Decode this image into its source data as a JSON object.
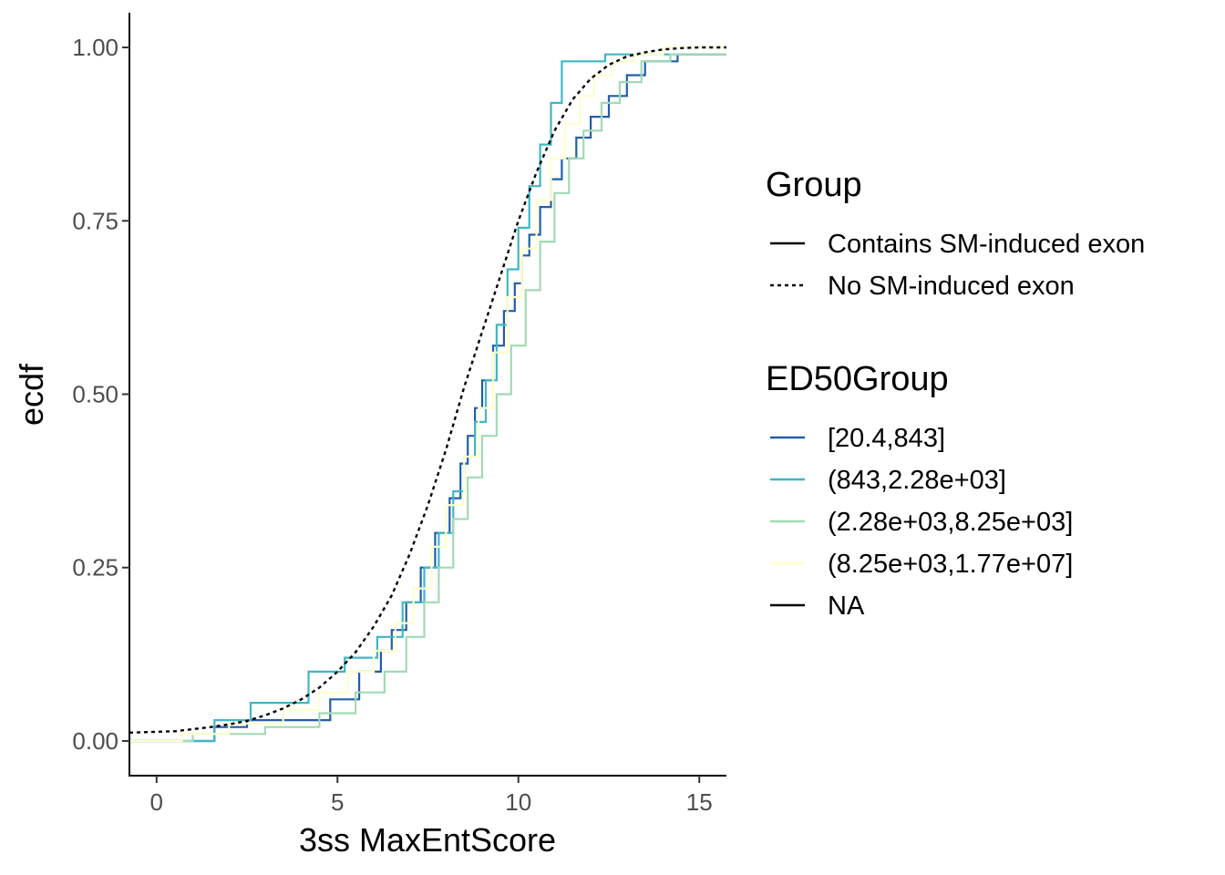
{
  "chart_data": {
    "type": "line",
    "xlabel": "3ss MaxEntScore",
    "ylabel": "ecdf",
    "xlim": [
      -0.75,
      15.75
    ],
    "ylim": [
      -0.05,
      1.05
    ],
    "x_ticks": [
      0,
      5,
      10,
      15
    ],
    "x_tick_labels": [
      "0",
      "5",
      "10",
      "15"
    ],
    "y_ticks": [
      0,
      0.25,
      0.5,
      0.75,
      1
    ],
    "y_tick_labels": [
      "0.00",
      "0.25",
      "0.50",
      "0.75",
      "1.00"
    ],
    "grid": false,
    "legend_position": "right",
    "legends": [
      {
        "title": "Group",
        "entries": [
          {
            "label": "Contains SM-induced exon",
            "color": "#000000",
            "dash": "solid"
          },
          {
            "label": "No SM-induced exon",
            "color": "#000000",
            "dash": "dotted"
          }
        ]
      },
      {
        "title": "ED50Group",
        "entries": [
          {
            "label": "[20.4,843]",
            "color": "#225ea8",
            "dash": "solid"
          },
          {
            "label": "(843,2.28e+03]",
            "color": "#41b6c4",
            "dash": "solid"
          },
          {
            "label": "(2.28e+03,8.25e+03]",
            "color": "#a1dab4",
            "dash": "solid"
          },
          {
            "label": "(8.25e+03,1.77e+07]",
            "color": "#ffffcc",
            "dash": "solid"
          },
          {
            "label": "NA",
            "color": "#000000",
            "dash": "solid"
          }
        ]
      }
    ],
    "series": [
      {
        "name": "No SM-induced exon",
        "group": "No SM-induced exon",
        "color": "#000000",
        "dash": "dotted",
        "step": false,
        "x": [
          -0.75,
          0.5,
          1,
          1.5,
          2,
          2.5,
          3,
          3.5,
          4,
          4.5,
          5,
          5.5,
          6,
          6.5,
          7,
          7.5,
          8,
          8.5,
          9,
          9.5,
          10,
          10.5,
          11,
          11.5,
          12,
          12.5,
          13,
          13.5,
          14,
          14.5,
          15,
          15.75
        ],
        "y": [
          0.012,
          0.014,
          0.017,
          0.02,
          0.024,
          0.029,
          0.037,
          0.047,
          0.06,
          0.077,
          0.1,
          0.128,
          0.165,
          0.21,
          0.27,
          0.34,
          0.42,
          0.51,
          0.59,
          0.67,
          0.75,
          0.82,
          0.88,
          0.925,
          0.955,
          0.975,
          0.987,
          0.993,
          0.997,
          0.999,
          1.0,
          1.0
        ]
      },
      {
        "name": "[20.4,843]",
        "group": "Contains SM-induced exon",
        "color": "#225ea8",
        "dash": "solid",
        "step": true,
        "x": [
          -0.75,
          1.6,
          2.5,
          4.8,
          5.6,
          6.2,
          6.5,
          6.9,
          7.3,
          7.7,
          8.1,
          8.4,
          8.6,
          8.8,
          9.0,
          9.3,
          9.6,
          9.9,
          10.1,
          10.3,
          10.6,
          10.9,
          11.2,
          11.6,
          12.0,
          12.5,
          13.0,
          13.5,
          14.4
        ],
        "y": [
          0.0,
          0.02,
          0.03,
          0.06,
          0.1,
          0.13,
          0.16,
          0.2,
          0.25,
          0.3,
          0.35,
          0.4,
          0.44,
          0.48,
          0.52,
          0.57,
          0.62,
          0.66,
          0.7,
          0.73,
          0.77,
          0.81,
          0.84,
          0.87,
          0.9,
          0.93,
          0.96,
          0.98,
          0.99
        ]
      },
      {
        "name": "(843,2.28e+03]",
        "group": "Contains SM-induced exon",
        "color": "#41b6c4",
        "dash": "solid",
        "step": true,
        "x": [
          -0.75,
          1.6,
          2.6,
          4.2,
          5.2,
          6.1,
          6.8,
          7.4,
          7.8,
          8.2,
          8.5,
          8.8,
          9.1,
          9.4,
          9.7,
          10.0,
          10.3,
          10.6,
          10.9,
          11.2,
          11.5,
          12.4,
          14.4
        ],
        "y": [
          0.0,
          0.03,
          0.055,
          0.1,
          0.12,
          0.15,
          0.2,
          0.25,
          0.3,
          0.36,
          0.41,
          0.46,
          0.52,
          0.6,
          0.68,
          0.74,
          0.8,
          0.86,
          0.92,
          0.98,
          0.98,
          0.99,
          0.99
        ]
      },
      {
        "name": "(2.28e+03,8.25e+03]",
        "group": "Contains SM-induced exon",
        "color": "#a1dab4",
        "dash": "solid",
        "step": true,
        "x": [
          -0.75,
          1.0,
          3.0,
          4.5,
          5.5,
          6.3,
          6.9,
          7.4,
          7.8,
          8.2,
          8.6,
          9.0,
          9.4,
          9.8,
          10.2,
          10.6,
          11.0,
          11.4,
          11.8,
          12.3,
          12.8,
          13.4,
          14.2
        ],
        "y": [
          0.0,
          0.01,
          0.02,
          0.04,
          0.07,
          0.1,
          0.15,
          0.2,
          0.25,
          0.32,
          0.38,
          0.44,
          0.5,
          0.57,
          0.65,
          0.72,
          0.79,
          0.84,
          0.88,
          0.92,
          0.95,
          0.98,
          0.99
        ]
      },
      {
        "name": "(8.25e+03,1.77e+07]",
        "group": "Contains SM-induced exon",
        "color": "#ffffcc",
        "dash": "solid",
        "step": true,
        "x": [
          -0.75,
          0.7,
          2.0,
          3.5,
          4.5,
          5.3,
          6.0,
          6.6,
          7.1,
          7.6,
          8.0,
          8.5,
          8.9,
          9.3,
          9.7,
          10.1,
          10.5,
          10.9,
          11.3,
          11.7,
          12.1,
          12.6,
          13.2,
          14.0
        ],
        "y": [
          0.0,
          0.01,
          0.025,
          0.045,
          0.07,
          0.1,
          0.13,
          0.17,
          0.22,
          0.28,
          0.34,
          0.41,
          0.48,
          0.56,
          0.64,
          0.71,
          0.78,
          0.84,
          0.89,
          0.93,
          0.96,
          0.98,
          0.99,
          1.0
        ]
      }
    ]
  }
}
